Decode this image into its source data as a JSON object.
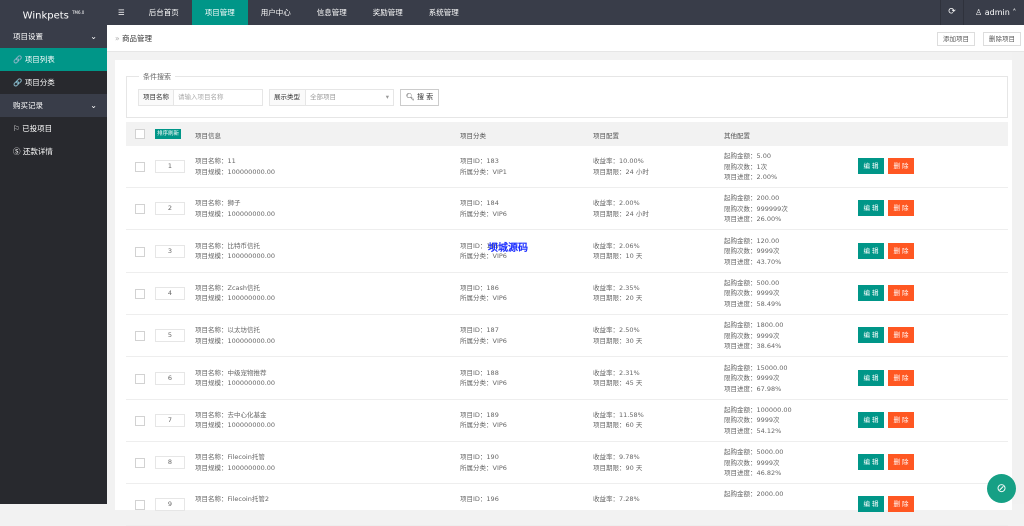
{
  "app": {
    "logo": "Winkpets",
    "version": "TM6.0"
  },
  "topnav": {
    "items": [
      "后台首页",
      "项目管理",
      "用户中心",
      "信息管理",
      "奖励管理",
      "系统管理"
    ],
    "active": 1,
    "user": "admin"
  },
  "sidebar": {
    "groups": [
      {
        "label": "项目设置",
        "items": [
          "项目列表",
          "项目分类"
        ]
      },
      {
        "label": "购买记录",
        "items": [
          "已投项目",
          "还款详情"
        ]
      }
    ]
  },
  "breadcrumb": {
    "title": "商品管理",
    "add": "添加项目",
    "delete": "删除项目"
  },
  "search": {
    "legend": "条件搜索",
    "name_label": "项目名称",
    "name_placeholder": "请输入项目名称",
    "type_label": "展示类型",
    "type_value": "全部项目",
    "button": "搜 索"
  },
  "table": {
    "sort_button": "排序刷新",
    "headers": [
      "项目信息",
      "项目分类",
      "项目配置",
      "其他配置"
    ],
    "edit": "编 辑",
    "delete": "删 除",
    "rows": [
      {
        "order": "1",
        "name": "项目名称：11",
        "scale": "项目规模：100000000.00",
        "id": "项目ID：183",
        "cat": "所属分类：VIP1",
        "rate": "收益率：10.00%",
        "period": "项目期限：24 小时",
        "min": "起购金额：5.00",
        "limit": "限购次数：1次",
        "progress": "项目进度：2.00%"
      },
      {
        "order": "2",
        "name": "项目名称：狮子",
        "scale": "项目规模：100000000.00",
        "id": "项目ID：184",
        "cat": "所属分类：VIP6",
        "rate": "收益率：2.00%",
        "period": "项目期限：24 小时",
        "min": "起购金额：200.00",
        "limit": "限购次数：999999次",
        "progress": "项目进度：26.00%"
      },
      {
        "order": "3",
        "name": "项目名称：比特币信托",
        "scale": "项目规模：100000000.00",
        "id": "项目ID：185",
        "cat": "所属分类：VIP6",
        "rate": "收益率：2.06%",
        "period": "项目期限：10 天",
        "min": "起购金额：120.00",
        "limit": "限购次数：9999次",
        "progress": "项目进度：43.70%"
      },
      {
        "order": "4",
        "name": "项目名称：Zcash信托",
        "scale": "项目规模：100000000.00",
        "id": "项目ID：186",
        "cat": "所属分类：VIP6",
        "rate": "收益率：2.35%",
        "period": "项目期限：20 天",
        "min": "起购金额：500.00",
        "limit": "限购次数：9999次",
        "progress": "项目进度：58.49%"
      },
      {
        "order": "5",
        "name": "项目名称：以太坊信托",
        "scale": "项目规模：100000000.00",
        "id": "项目ID：187",
        "cat": "所属分类：VIP6",
        "rate": "收益率：2.50%",
        "period": "项目期限：30 天",
        "min": "起购金额：1800.00",
        "limit": "限购次数：9999次",
        "progress": "项目进度：38.64%"
      },
      {
        "order": "6",
        "name": "项目名称：中级宠物推荐",
        "scale": "项目规模：100000000.00",
        "id": "项目ID：188",
        "cat": "所属分类：VIP6",
        "rate": "收益率：2.31%",
        "period": "项目期限：45 天",
        "min": "起购金额：15000.00",
        "limit": "限购次数：9999次",
        "progress": "项目进度：67.98%"
      },
      {
        "order": "7",
        "name": "项目名称：去中心化基金",
        "scale": "项目规模：100000000.00",
        "id": "项目ID：189",
        "cat": "所属分类：VIP6",
        "rate": "收益率：11.58%",
        "period": "项目期限：60 天",
        "min": "起购金额：100000.00",
        "limit": "限购次数：9999次",
        "progress": "项目进度：54.12%"
      },
      {
        "order": "8",
        "name": "项目名称：Filecoin托管",
        "scale": "项目规模：100000000.00",
        "id": "项目ID：190",
        "cat": "所属分类：VIP6",
        "rate": "收益率：9.78%",
        "period": "项目期限：90 天",
        "min": "起购金额：5000.00",
        "limit": "限购次数：9999次",
        "progress": "项目进度：46.82%"
      },
      {
        "order": "9",
        "name": "项目名称：Filecoin托管2",
        "scale": "",
        "id": "项目ID：196",
        "cat": "",
        "rate": "收益率：7.28%",
        "period": "",
        "min": "起购金额：2000.00",
        "limit": "",
        "progress": ""
      }
    ]
  },
  "watermark": "坝城源码",
  "colors": {
    "primary": "#009688",
    "danger": "#FF5722",
    "topbar": "#393D49"
  }
}
